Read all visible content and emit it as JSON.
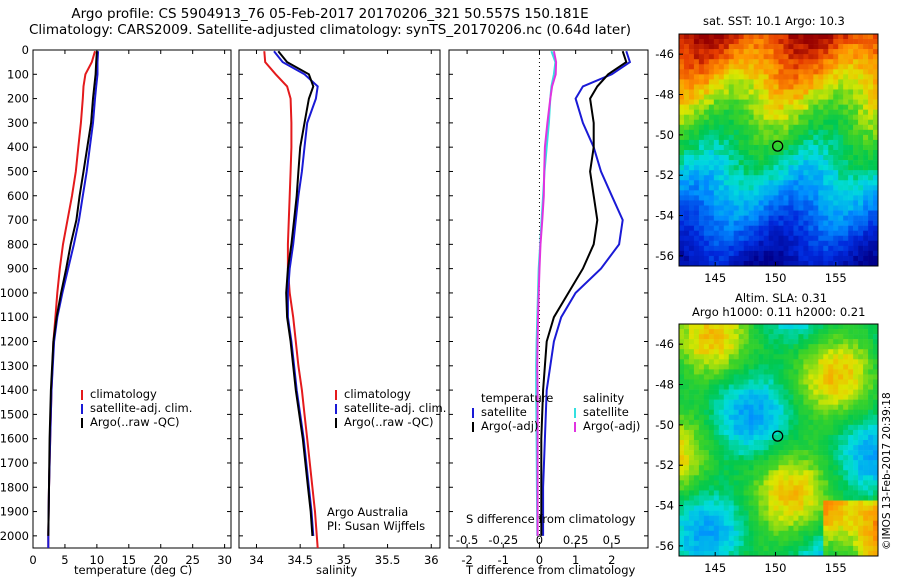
{
  "title": {
    "line1": "Argo profile: CS 5904913_76 05-Feb-2017 20170206_321 50.557S 150.181E",
    "line2": "Climatology: CARS2009. Satellite-adjusted climatology: synTS_20170206.nc (0.64d later)"
  },
  "colors": {
    "climatology": "#e41a1c",
    "satellite": "#1a1ad6",
    "argo": "#000000",
    "sal_satellite": "#33e0e0",
    "sal_argo": "#e033e0"
  },
  "chart_data": [
    {
      "type": "line",
      "name": "temperature",
      "xlabel": "temperature (deg C)",
      "ylabel": "",
      "xlim": [
        0,
        31
      ],
      "ylim": [
        2050,
        0
      ],
      "y_inverted": true,
      "xticks": [
        0,
        5,
        10,
        15,
        20,
        25,
        30
      ],
      "yticks": [
        0,
        100,
        200,
        300,
        400,
        500,
        600,
        700,
        800,
        900,
        1000,
        1100,
        1200,
        1300,
        1400,
        1500,
        1600,
        1700,
        1800,
        1900,
        2000
      ],
      "legend": {
        "position": "bottom-right",
        "entries": [
          "climatology",
          "satellite-adj. clim.",
          "Argo(..raw -QC)"
        ]
      },
      "series": [
        {
          "name": "climatology",
          "color": "#e41a1c",
          "depth": [
            5,
            50,
            100,
            150,
            200,
            300,
            400,
            500,
            600,
            700,
            800,
            900,
            1000,
            1100,
            1200,
            1400,
            1600,
            1800,
            2000,
            2050
          ],
          "values": [
            9.7,
            9.2,
            8.2,
            7.9,
            7.8,
            7.5,
            7.1,
            6.7,
            6.1,
            5.4,
            4.7,
            4.2,
            3.8,
            3.5,
            3.2,
            2.9,
            2.7,
            2.5,
            2.4,
            2.4
          ]
        },
        {
          "name": "satellite-adj. clim.",
          "color": "#1a1ad6",
          "depth": [
            5,
            50,
            100,
            150,
            200,
            300,
            400,
            500,
            600,
            700,
            800,
            900,
            1000,
            1100,
            1200,
            1400,
            1600,
            1800,
            2000,
            2050
          ],
          "values": [
            10.2,
            10.1,
            10.1,
            9.9,
            9.7,
            9.4,
            8.9,
            8.4,
            7.8,
            7.2,
            6.4,
            5.5,
            4.6,
            3.8,
            3.3,
            2.9,
            2.7,
            2.5,
            2.4,
            2.4
          ]
        },
        {
          "name": "Argo(..raw -QC)",
          "color": "#000000",
          "depth": [
            5,
            50,
            100,
            150,
            200,
            300,
            400,
            500,
            600,
            700,
            800,
            900,
            1000,
            1100,
            1200,
            1400,
            1600,
            1800,
            2000
          ],
          "values": [
            10.0,
            9.9,
            9.8,
            9.6,
            9.4,
            9.1,
            8.5,
            7.9,
            7.3,
            6.8,
            5.9,
            5.2,
            4.4,
            3.7,
            3.2,
            2.8,
            2.6,
            2.5,
            2.4
          ]
        }
      ]
    },
    {
      "type": "line",
      "name": "salinity",
      "xlabel": "salinity",
      "xlim": [
        33.8,
        36.1
      ],
      "ylim": [
        2050,
        0
      ],
      "y_inverted": true,
      "xticks": [
        34,
        34.5,
        35,
        35.5,
        36
      ],
      "legend": {
        "position": "bottom-right",
        "entries": [
          "climatology",
          "satellite-adj. clim.",
          "Argo(..raw -QC)"
        ]
      },
      "annotations": [
        "Argo Australia",
        "PI: Susan Wijffels"
      ],
      "series": [
        {
          "name": "climatology",
          "color": "#e41a1c",
          "depth": [
            5,
            50,
            100,
            150,
            200,
            300,
            400,
            500,
            600,
            700,
            800,
            900,
            1000,
            1100,
            1200,
            1300,
            1400,
            1500,
            1600,
            1700,
            1800,
            1900,
            2000,
            2050
          ],
          "values": [
            34.09,
            34.1,
            34.22,
            34.35,
            34.39,
            34.4,
            34.4,
            34.39,
            34.38,
            34.37,
            34.36,
            34.36,
            34.38,
            34.42,
            34.45,
            34.48,
            34.52,
            34.55,
            34.58,
            34.61,
            34.64,
            34.67,
            34.69,
            34.7
          ]
        },
        {
          "name": "satellite-adj. clim.",
          "color": "#1a1ad6",
          "depth": [
            5,
            50,
            100,
            150,
            200,
            300,
            400,
            500,
            600,
            700,
            800,
            900,
            1000,
            1100,
            1200,
            1300,
            1400,
            1500,
            1600,
            1700,
            1800,
            1900,
            2000
          ],
          "values": [
            34.2,
            34.3,
            34.55,
            34.7,
            34.68,
            34.58,
            34.55,
            34.52,
            34.48,
            34.45,
            34.42,
            34.38,
            34.36,
            34.36,
            34.4,
            34.43,
            34.46,
            34.5,
            34.54,
            34.57,
            34.6,
            34.63,
            34.65
          ]
        },
        {
          "name": "Argo(..raw -QC)",
          "color": "#000000",
          "depth": [
            5,
            50,
            100,
            150,
            200,
            300,
            400,
            500,
            600,
            700,
            800,
            900,
            1000,
            1100,
            1200,
            1300,
            1400,
            1500,
            1600,
            1700,
            1800,
            1900,
            2000
          ],
          "values": [
            34.25,
            34.35,
            34.6,
            34.65,
            34.6,
            34.55,
            34.5,
            34.48,
            34.46,
            34.43,
            34.4,
            34.36,
            34.34,
            34.35,
            34.39,
            34.42,
            34.45,
            34.49,
            34.53,
            34.56,
            34.59,
            34.62,
            34.64
          ]
        }
      ]
    },
    {
      "type": "line",
      "name": "difference",
      "xlabel": "T difference from climatology",
      "xlabel_top": "S difference from climatology",
      "xlim": [
        -2.5,
        3.0
      ],
      "ylim": [
        2050,
        0
      ],
      "y_inverted": true,
      "xticks": [
        -2,
        -1,
        0,
        1,
        2
      ],
      "s_xticks": [
        -0.5,
        -0.25,
        0,
        0.25,
        0.5
      ],
      "legend": {
        "position": "bottom",
        "headers": [
          "temperature",
          "salinity"
        ],
        "entries": [
          "satellite",
          "Argo(-adj)",
          "satellite",
          "Argo(-adj)"
        ]
      },
      "series": [
        {
          "name": "temperature satellite",
          "color": "#1a1ad6",
          "depth": [
            5,
            50,
            100,
            150,
            200,
            300,
            400,
            500,
            600,
            700,
            800,
            900,
            1000,
            1100,
            1200,
            1300,
            1400,
            1600,
            1800,
            2000
          ],
          "values": [
            2.4,
            2.5,
            2.0,
            1.2,
            1.0,
            1.2,
            1.5,
            1.7,
            2.0,
            2.3,
            2.2,
            1.7,
            1.0,
            0.6,
            0.4,
            0.3,
            0.2,
            0.15,
            0.1,
            0.1
          ]
        },
        {
          "name": "temperature Argo(-adj)",
          "color": "#000000",
          "depth": [
            5,
            50,
            100,
            150,
            200,
            300,
            400,
            500,
            600,
            700,
            800,
            900,
            1000,
            1100,
            1200,
            1300,
            1400,
            1600,
            1800,
            2000
          ],
          "values": [
            2.3,
            2.4,
            1.9,
            1.6,
            1.4,
            1.5,
            1.5,
            1.4,
            1.5,
            1.6,
            1.5,
            1.2,
            0.8,
            0.4,
            0.2,
            0.15,
            0.1,
            0.05,
            0.05,
            0.05
          ]
        },
        {
          "name": "salinity satellite",
          "color": "#33e0e0",
          "depth": [
            5,
            50,
            100,
            150,
            200,
            300,
            400,
            500,
            600,
            700,
            800,
            900,
            1000,
            1100,
            1200,
            1300,
            1400,
            1600,
            1800,
            2000
          ],
          "values": [
            0.33,
            0.44,
            0.4,
            0.33,
            0.3,
            0.26,
            0.2,
            0.14,
            0.1,
            0.06,
            0.02,
            -0.02,
            -0.04,
            -0.06,
            -0.08,
            -0.09,
            -0.09,
            -0.08,
            -0.07,
            -0.06
          ]
        },
        {
          "name": "salinity Argo(-adj)",
          "color": "#e033e0",
          "depth": [
            5,
            50,
            100,
            150,
            200,
            300,
            400,
            500,
            600,
            700,
            800,
            900,
            1000,
            1100,
            1200,
            1300,
            1400,
            1600,
            1800,
            2000
          ],
          "values": [
            0.4,
            0.46,
            0.45,
            0.35,
            0.3,
            0.22,
            0.15,
            0.13,
            0.12,
            0.08,
            0.03,
            0.0,
            -0.02,
            -0.04,
            -0.05,
            -0.06,
            -0.05,
            -0.05,
            -0.05,
            -0.05
          ]
        }
      ]
    },
    {
      "type": "heatmap",
      "name": "sst-map",
      "title": "sat. SST: 10.1  Argo: 10.3",
      "xlim": [
        142,
        158.5
      ],
      "ylim": [
        -56.5,
        -45
      ],
      "xticks": [
        145,
        150,
        155
      ],
      "yticks": [
        -46,
        -48,
        -50,
        -52,
        -54,
        -56
      ],
      "marker": {
        "lon": 150.181,
        "lat": -50.557
      }
    },
    {
      "type": "heatmap",
      "name": "sla-map",
      "title": "Altim. SLA: 0.31",
      "subtitle": "Argo h1000: 0.11 h2000: 0.21",
      "xlim": [
        142,
        158.5
      ],
      "ylim": [
        -56.5,
        -45
      ],
      "xticks": [
        145,
        150,
        155
      ],
      "yticks": [
        -46,
        -48,
        -50,
        -52,
        -54,
        -56
      ],
      "marker": {
        "lon": 150.181,
        "lat": -50.557
      }
    }
  ],
  "stamp": "©IMOS 13-Feb-2017 20:39:18"
}
